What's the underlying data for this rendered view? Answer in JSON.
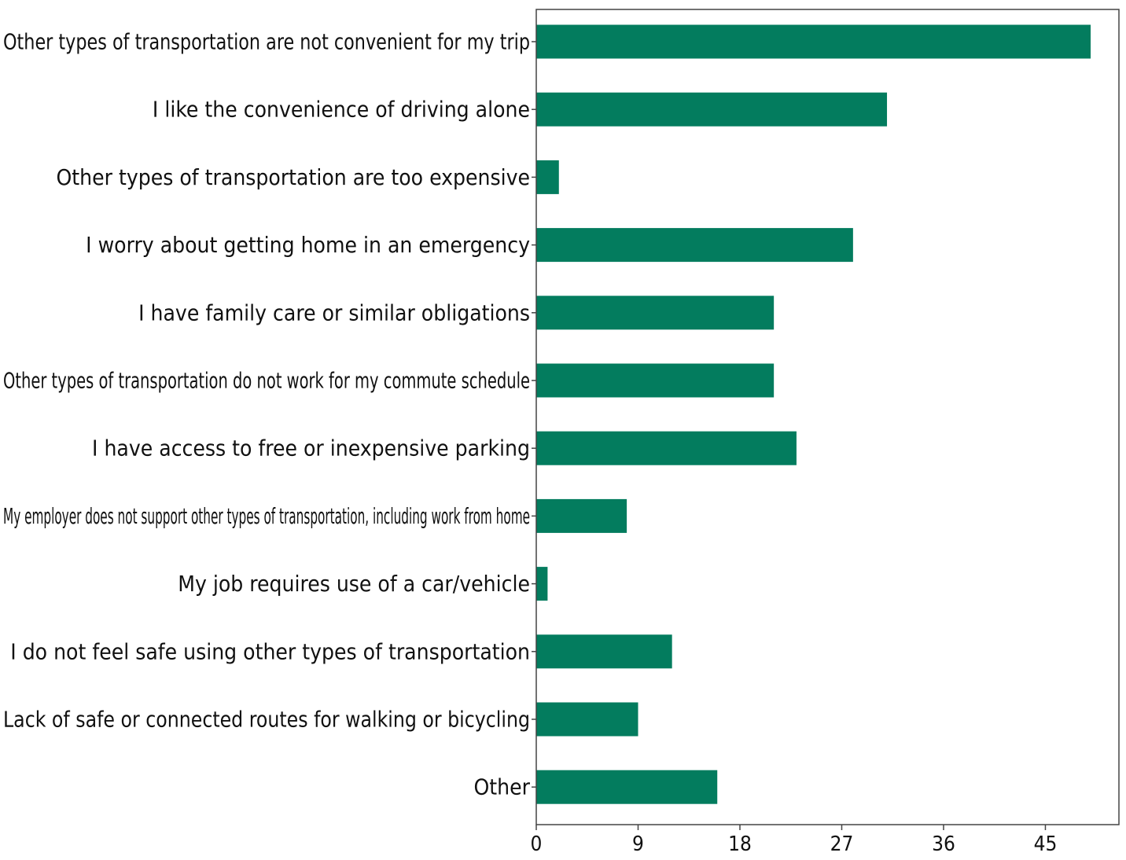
{
  "chart_data": {
    "type": "bar",
    "orientation": "horizontal",
    "title": "",
    "xlabel": "",
    "ylabel": "",
    "bar_color": "#037c5e",
    "xlim": [
      0,
      51.5
    ],
    "xticks": [
      0,
      9,
      18,
      27,
      36,
      45
    ],
    "grid": false,
    "legend": "none",
    "categories": [
      "Other types of transportation are not convenient for my trip",
      "I like the convenience of driving alone",
      "Other types of transportation are too expensive",
      "I worry about getting home in an emergency",
      "I have family care or similar obligations",
      "Other types of transportation do not work for my commute schedule",
      "I have access to free or inexpensive parking",
      "My employer does not support other types of transportation, including work from home",
      "My job requires use of a car/vehicle",
      "I do not feel safe using other types of transportation",
      "Lack of safe or connected routes for walking or bicycling",
      "Other"
    ],
    "values": [
      49,
      31,
      2,
      28,
      21,
      21,
      23,
      8,
      1,
      12,
      9,
      16
    ]
  }
}
